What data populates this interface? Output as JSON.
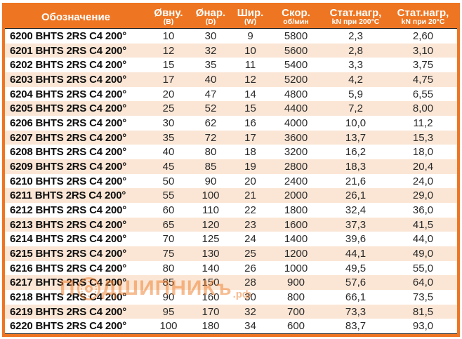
{
  "colors": {
    "header_bg": "#EE7623",
    "frame_border": "#EE7623",
    "row_alt_bg": "#FBE6D5",
    "row_bg": "#FFFFFF",
    "header_text": "#FFFFFF",
    "rule": "#1A1A1A",
    "watermark": "#EE7C28"
  },
  "table": {
    "columns": [
      {
        "label": "Обозначение",
        "sub": ""
      },
      {
        "label": "Øвну.",
        "sub": "(B)"
      },
      {
        "label": "Øнар.",
        "sub": "(D)"
      },
      {
        "label": "Шир.",
        "sub": "(W)"
      },
      {
        "label": "Скор.",
        "sub": "об/мин"
      },
      {
        "label": "Стат.нагр,",
        "sub": "kN при 200°С"
      },
      {
        "label": "Стат.нагр,",
        "sub": "kN при 20°С"
      }
    ],
    "rows": [
      [
        "6200 BHTS 2RS C4 200°",
        "10",
        "30",
        "9",
        "5800",
        "2,3",
        "2,60"
      ],
      [
        "6201 BHTS 2RS C4 200°",
        "12",
        "32",
        "10",
        "5600",
        "2,8",
        "3,10"
      ],
      [
        "6202 BHTS 2RS C4 200°",
        "15",
        "35",
        "11",
        "5400",
        "3,3",
        "3,75"
      ],
      [
        "6203 BHTS 2RS C4 200°",
        "17",
        "40",
        "12",
        "5200",
        "4,2",
        "4,75"
      ],
      [
        "6204 BHTS 2RS C4 200°",
        "20",
        "47",
        "14",
        "4800",
        "5,9",
        "6,55"
      ],
      [
        "6205 BHTS 2RS C4 200°",
        "25",
        "52",
        "15",
        "4400",
        "7,2",
        "8,00"
      ],
      [
        "6206 BHTS 2RS C4 200°",
        "30",
        "62",
        "16",
        "4000",
        "10,0",
        "11,2"
      ],
      [
        "6207 BHTS 2RS C4 200°",
        "35",
        "72",
        "17",
        "3600",
        "13,7",
        "15,3"
      ],
      [
        "6208 BHTS 2RS C4 200°",
        "40",
        "80",
        "18",
        "3200",
        "16,2",
        "18,0"
      ],
      [
        "6209 BHTS 2RS C4 200°",
        "45",
        "85",
        "19",
        "2800",
        "18,3",
        "20,4"
      ],
      [
        "6210 BHTS 2RS C4 200°",
        "50",
        "90",
        "20",
        "2400",
        "21,6",
        "24,0"
      ],
      [
        "6211 BHTS 2RS C4 200°",
        "55",
        "100",
        "21",
        "2000",
        "26,1",
        "29,0"
      ],
      [
        "6212 BHTS 2RS C4 200°",
        "60",
        "110",
        "22",
        "1800",
        "32,4",
        "36,0"
      ],
      [
        "6213 BHTS 2RS C4 200°",
        "65",
        "120",
        "23",
        "1600",
        "37,3",
        "41,5"
      ],
      [
        "6214 BHTS 2RS C4 200°",
        "70",
        "125",
        "24",
        "1400",
        "39,6",
        "44,0"
      ],
      [
        "6215 BHTS 2RS C4 200°",
        "75",
        "130",
        "25",
        "1200",
        "44,1",
        "49,0"
      ],
      [
        "6216 BHTS 2RS C4 200°",
        "80",
        "140",
        "26",
        "1000",
        "49,5",
        "55,0"
      ],
      [
        "6217 BHTS 2RS C4 200°",
        "85",
        "150",
        "28",
        "900",
        "57,6",
        "64,0"
      ],
      [
        "6218 BHTS 2RS C4 200°",
        "90",
        "160",
        "30",
        "800",
        "66,1",
        "73,5"
      ],
      [
        "6219 BHTS 2RS C4 200°",
        "95",
        "170",
        "32",
        "700",
        "73,3",
        "81,5"
      ],
      [
        "6220 BHTS 2RS C4 200°",
        "100",
        "180",
        "34",
        "600",
        "83,7",
        "93,0"
      ]
    ]
  },
  "watermark": {
    "prefix": "П",
    "word_rest": "ДШИПНИКъ",
    "suffix": ".рф"
  }
}
